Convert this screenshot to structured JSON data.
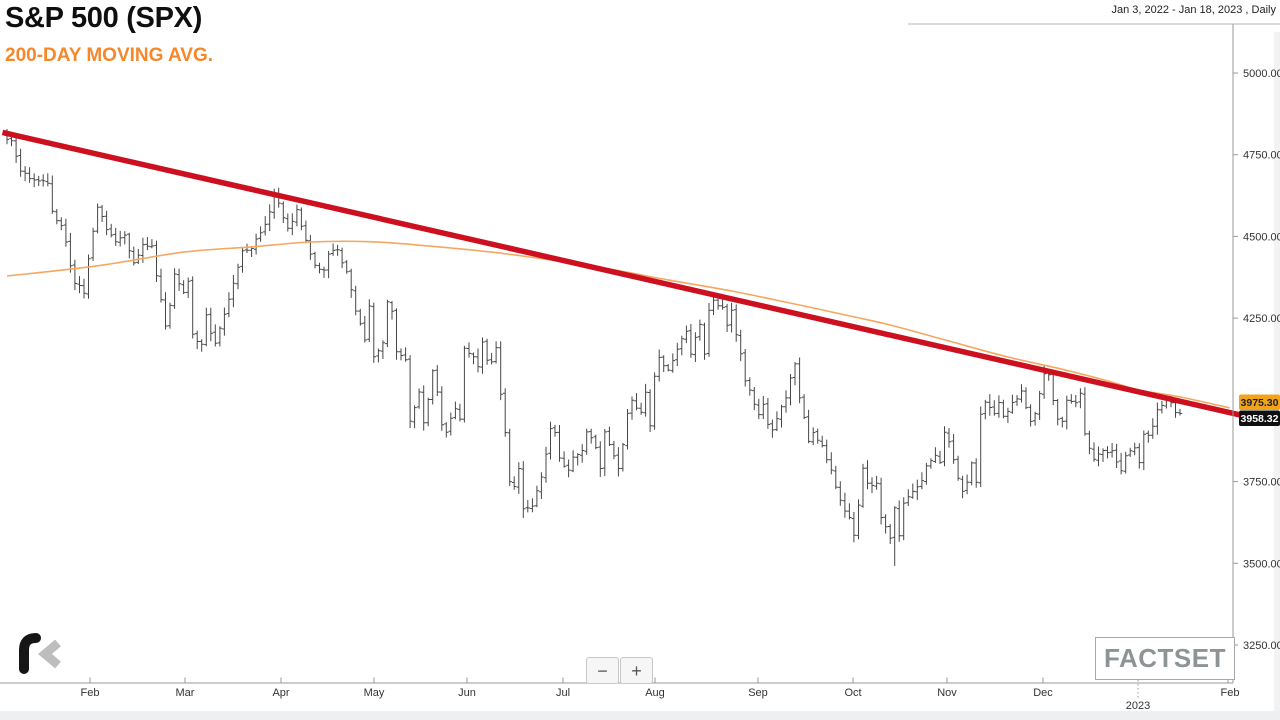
{
  "header": {
    "title": "S&P 500 (SPX)",
    "subtitle": "200-DAY MOVING AVG.",
    "range_label": "Jan 3, 2022 - Jan 18, 2023 , Daily"
  },
  "toolbar": {
    "zoom_out_label": "−",
    "zoom_in_label": "+"
  },
  "brand": {
    "logo_text": "FACTSET"
  },
  "badges": {
    "ma_value": "3975.30",
    "last_value": "3958.32"
  },
  "colors": {
    "trendline": "#cc1020",
    "moving_avg": "#f5a75f",
    "bars": "#474747",
    "axis_line": "#9a9a9a",
    "top_line": "#b5b5b5",
    "tick_text": "#333333",
    "badge_ma_bg": "#f0a31b",
    "badge_ma_text": "#1f1f1f",
    "badge_last_bg": "#101010",
    "badge_last_text": "#ffffff",
    "subtitle_orange": "#f6872b"
  },
  "y_axis": {
    "labels": [
      "5000.00",
      "4750.00",
      "4500.00",
      "4250.00",
      "3750.00",
      "3500.00",
      "3250.00"
    ],
    "values": [
      5000,
      4750,
      4500,
      4250,
      3750,
      3500,
      3250
    ]
  },
  "x_axis": {
    "month_labels": [
      "Feb",
      "Mar",
      "Apr",
      "May",
      "Jun",
      "Jul",
      "Aug",
      "Sep",
      "Oct",
      "Nov",
      "Dec"
    ],
    "year_label": "2023",
    "trailing_label": "Feb"
  },
  "chart_data": {
    "type": "ohlc",
    "title": "S&P 500 (SPX) daily bars with 200-day moving average and descending trendline",
    "x_range": [
      "Jan 3, 2022",
      "Jan 18, 2023"
    ],
    "y_range": [
      3250,
      5000
    ],
    "grid": false,
    "legend": "none",
    "last_close": 3958.32,
    "ma_last": 3975.3,
    "trendline_price": [
      [
        -1,
        4818
      ],
      [
        272.5,
        3953
      ]
    ],
    "ma_anchors": [
      [
        0,
        4379
      ],
      [
        20,
        4410
      ],
      [
        39,
        4452
      ],
      [
        54,
        4468
      ],
      [
        67,
        4483
      ],
      [
        80,
        4484
      ],
      [
        93,
        4471
      ],
      [
        107,
        4452
      ],
      [
        120,
        4428
      ],
      [
        133,
        4400
      ],
      [
        146,
        4367
      ],
      [
        160,
        4333
      ],
      [
        173,
        4296
      ],
      [
        186,
        4257
      ],
      [
        195,
        4229
      ],
      [
        208,
        4180
      ],
      [
        221,
        4131
      ],
      [
        232,
        4097
      ],
      [
        243,
        4058
      ],
      [
        250,
        4030
      ],
      [
        259,
        4009
      ],
      [
        270,
        3975.3
      ]
    ],
    "day_low_overrides": [
      [
        114,
        3639
      ],
      [
        196,
        3492
      ]
    ],
    "day_high_overrides": [
      [
        0,
        4818
      ],
      [
        59,
        4637
      ]
    ],
    "close_anchors": [
      [
        0,
        4797
      ],
      [
        1,
        4793
      ],
      [
        3,
        4700
      ],
      [
        5,
        4677
      ],
      [
        7,
        4670
      ],
      [
        9,
        4663
      ],
      [
        10,
        4577
      ],
      [
        12,
        4533
      ],
      [
        13,
        4483
      ],
      [
        14,
        4410
      ],
      [
        15,
        4356
      ],
      [
        16,
        4350
      ],
      [
        17,
        4326
      ],
      [
        18,
        4432
      ],
      [
        19,
        4516
      ],
      [
        20,
        4589
      ],
      [
        22,
        4521
      ],
      [
        24,
        4484
      ],
      [
        26,
        4504
      ],
      [
        28,
        4419
      ],
      [
        30,
        4475
      ],
      [
        32,
        4471
      ],
      [
        33,
        4380
      ],
      [
        34,
        4306
      ],
      [
        35,
        4226
      ],
      [
        36,
        4289
      ],
      [
        37,
        4385
      ],
      [
        39,
        4328
      ],
      [
        40,
        4363
      ],
      [
        41,
        4201
      ],
      [
        43,
        4170
      ],
      [
        44,
        4260
      ],
      [
        45,
        4204
      ],
      [
        46,
        4173
      ],
      [
        48,
        4262
      ],
      [
        50,
        4357
      ],
      [
        52,
        4456
      ],
      [
        54,
        4463
      ],
      [
        56,
        4511
      ],
      [
        58,
        4575
      ],
      [
        59,
        4631
      ],
      [
        60,
        4602
      ],
      [
        62,
        4525
      ],
      [
        63,
        4546
      ],
      [
        64,
        4582
      ],
      [
        66,
        4488
      ],
      [
        68,
        4412
      ],
      [
        70,
        4397
      ],
      [
        71,
        4446
      ],
      [
        73,
        4459
      ],
      [
        75,
        4392
      ],
      [
        77,
        4272
      ],
      [
        79,
        4183
      ],
      [
        80,
        4287
      ],
      [
        81,
        4132
      ],
      [
        83,
        4175
      ],
      [
        84,
        4300
      ],
      [
        85,
        4271
      ],
      [
        86,
        4147
      ],
      [
        88,
        4123
      ],
      [
        89,
        3935
      ],
      [
        91,
        4024
      ],
      [
        92,
        3930
      ],
      [
        93,
        4001
      ],
      [
        94,
        4089
      ],
      [
        95,
        4024
      ],
      [
        96,
        3924
      ],
      [
        97,
        3901
      ],
      [
        99,
        3973
      ],
      [
        100,
        3941
      ],
      [
        101,
        4158
      ],
      [
        103,
        4132
      ],
      [
        104,
        4101
      ],
      [
        105,
        4177
      ],
      [
        106,
        4121
      ],
      [
        107,
        4116
      ],
      [
        108,
        4160
      ],
      [
        109,
        4017
      ],
      [
        110,
        3900
      ],
      [
        111,
        3750
      ],
      [
        112,
        3735
      ],
      [
        113,
        3790
      ],
      [
        114,
        3667
      ],
      [
        116,
        3675
      ],
      [
        118,
        3764
      ],
      [
        120,
        3912
      ],
      [
        121,
        3900
      ],
      [
        122,
        3822
      ],
      [
        124,
        3785
      ],
      [
        125,
        3825
      ],
      [
        127,
        3845
      ],
      [
        128,
        3902
      ],
      [
        130,
        3854
      ],
      [
        131,
        3790
      ],
      [
        132,
        3902
      ],
      [
        133,
        3863
      ],
      [
        135,
        3790
      ],
      [
        136,
        3863
      ],
      [
        137,
        3959
      ],
      [
        138,
        3999
      ],
      [
        140,
        3962
      ],
      [
        141,
        4023
      ],
      [
        142,
        3921
      ],
      [
        143,
        4072
      ],
      [
        144,
        4130
      ],
      [
        146,
        4091
      ],
      [
        148,
        4155
      ],
      [
        150,
        4210
      ],
      [
        151,
        4140
      ],
      [
        153,
        4231
      ],
      [
        154,
        4140
      ],
      [
        155,
        4274
      ],
      [
        156,
        4305
      ],
      [
        158,
        4283
      ],
      [
        159,
        4228
      ],
      [
        160,
        4274
      ],
      [
        161,
        4199
      ],
      [
        162,
        4141
      ],
      [
        163,
        4058
      ],
      [
        164,
        4030
      ],
      [
        166,
        3955
      ],
      [
        167,
        3986
      ],
      [
        168,
        3925
      ],
      [
        169,
        3908
      ],
      [
        171,
        3979
      ],
      [
        172,
        4006
      ],
      [
        173,
        4067
      ],
      [
        174,
        4110
      ],
      [
        175,
        4006
      ],
      [
        176,
        3946
      ],
      [
        177,
        3873
      ],
      [
        178,
        3900
      ],
      [
        180,
        3860
      ],
      [
        182,
        3785
      ],
      [
        184,
        3693
      ],
      [
        186,
        3640
      ],
      [
        187,
        3586
      ],
      [
        188,
        3678
      ],
      [
        189,
        3791
      ],
      [
        190,
        3745
      ],
      [
        192,
        3745
      ],
      [
        193,
        3640
      ],
      [
        194,
        3612
      ],
      [
        195,
        3577
      ],
      [
        196,
        3670
      ],
      [
        197,
        3584
      ],
      [
        198,
        3684
      ],
      [
        200,
        3720
      ],
      [
        202,
        3753
      ],
      [
        203,
        3798
      ],
      [
        205,
        3830
      ],
      [
        206,
        3808
      ],
      [
        207,
        3901
      ],
      [
        208,
        3872
      ],
      [
        210,
        3760
      ],
      [
        211,
        3720
      ],
      [
        212,
        3748
      ],
      [
        213,
        3807
      ],
      [
        214,
        3748
      ],
      [
        215,
        3956
      ],
      [
        216,
        3993
      ],
      [
        218,
        3958
      ],
      [
        219,
        3992
      ],
      [
        220,
        3950
      ],
      [
        222,
        3992
      ],
      [
        223,
        4003
      ],
      [
        224,
        4027
      ],
      [
        226,
        3934
      ],
      [
        227,
        3958
      ],
      [
        229,
        4080
      ],
      [
        230,
        4077
      ],
      [
        231,
        3998
      ],
      [
        232,
        3941
      ],
      [
        233,
        3934
      ],
      [
        234,
        3999
      ],
      [
        236,
        3991
      ],
      [
        237,
        4020
      ],
      [
        238,
        3896
      ],
      [
        239,
        3852
      ],
      [
        240,
        3818
      ],
      [
        242,
        3845
      ],
      [
        244,
        3844
      ],
      [
        245,
        3810
      ],
      [
        246,
        3783
      ],
      [
        247,
        3829
      ],
      [
        249,
        3853
      ],
      [
        250,
        3808
      ],
      [
        251,
        3895
      ],
      [
        252,
        3892
      ],
      [
        253,
        3919
      ],
      [
        254,
        3970
      ],
      [
        255,
        3983
      ],
      [
        256,
        3999
      ],
      [
        257,
        3991
      ],
      [
        258,
        3961
      ],
      [
        259,
        3958.32
      ]
    ]
  }
}
